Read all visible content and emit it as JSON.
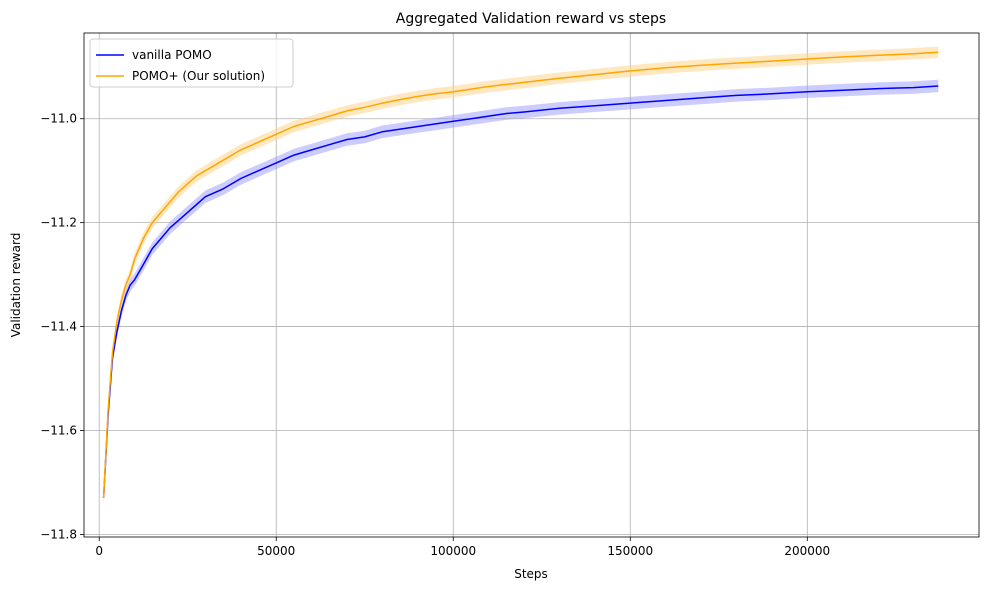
{
  "chart_data": {
    "type": "line",
    "title": "Aggregated Validation reward vs steps",
    "xlabel": "Steps",
    "ylabel": "Validation reward",
    "xlim": [
      -4300,
      248500
    ],
    "ylim": [
      -11.805,
      -10.835
    ],
    "xticks": [
      0,
      50000,
      100000,
      150000,
      200000
    ],
    "xtick_labels": [
      "0",
      "50000",
      "100000",
      "150000",
      "200000"
    ],
    "yticks": [
      -11.8,
      -11.6,
      -11.4,
      -11.2,
      -11.0
    ],
    "ytick_labels": [
      "−11.8",
      "−11.6",
      "−11.4",
      "−11.2",
      "−11.0"
    ],
    "grid": true,
    "legend_position": "upper-left",
    "series": [
      {
        "name": "vanilla POMO",
        "color": "#0000ff",
        "band_color": "#9999ff",
        "band_halfwidth": 0.012,
        "x": [
          1250,
          2500,
          3750,
          5000,
          6250,
          7500,
          8750,
          10000,
          12500,
          15000,
          17500,
          20000,
          22500,
          25000,
          27500,
          30000,
          35000,
          40000,
          45000,
          50000,
          55000,
          60000,
          65000,
          70000,
          75000,
          80000,
          85000,
          90000,
          95000,
          100000,
          105000,
          110000,
          115000,
          120000,
          130000,
          140000,
          150000,
          160000,
          170000,
          180000,
          190000,
          200000,
          210000,
          220000,
          230000,
          237000
        ],
        "y": [
          -11.73,
          -11.57,
          -11.46,
          -11.41,
          -11.37,
          -11.34,
          -11.32,
          -11.31,
          -11.28,
          -11.25,
          -11.23,
          -11.21,
          -11.195,
          -11.18,
          -11.165,
          -11.15,
          -11.135,
          -11.115,
          -11.1,
          -11.085,
          -11.07,
          -11.06,
          -11.05,
          -11.04,
          -11.035,
          -11.025,
          -11.02,
          -11.015,
          -11.01,
          -11.005,
          -11.0,
          -10.995,
          -10.99,
          -10.987,
          -10.98,
          -10.975,
          -10.97,
          -10.965,
          -10.96,
          -10.955,
          -10.952,
          -10.948,
          -10.945,
          -10.942,
          -10.94,
          -10.937
        ]
      },
      {
        "name": "POMO+ (Our solution)",
        "color": "#ffa500",
        "band_color": "#ffd27f",
        "band_halfwidth": 0.011,
        "x": [
          1250,
          2500,
          3750,
          5000,
          6250,
          7500,
          8750,
          10000,
          12500,
          15000,
          17500,
          20000,
          22500,
          25000,
          27500,
          30000,
          35000,
          40000,
          45000,
          50000,
          55000,
          60000,
          65000,
          70000,
          75000,
          80000,
          85000,
          90000,
          95000,
          100000,
          105000,
          110000,
          115000,
          120000,
          130000,
          140000,
          150000,
          160000,
          170000,
          180000,
          190000,
          200000,
          210000,
          220000,
          230000,
          237000
        ],
        "y": [
          -11.73,
          -11.56,
          -11.45,
          -11.39,
          -11.35,
          -11.32,
          -11.3,
          -11.27,
          -11.23,
          -11.2,
          -11.18,
          -11.16,
          -11.14,
          -11.125,
          -11.11,
          -11.1,
          -11.08,
          -11.06,
          -11.045,
          -11.03,
          -11.015,
          -11.005,
          -10.995,
          -10.985,
          -10.978,
          -10.97,
          -10.963,
          -10.957,
          -10.952,
          -10.948,
          -10.943,
          -10.938,
          -10.934,
          -10.93,
          -10.922,
          -10.915,
          -10.908,
          -10.902,
          -10.897,
          -10.893,
          -10.889,
          -10.885,
          -10.881,
          -10.878,
          -10.875,
          -10.872
        ]
      }
    ]
  }
}
